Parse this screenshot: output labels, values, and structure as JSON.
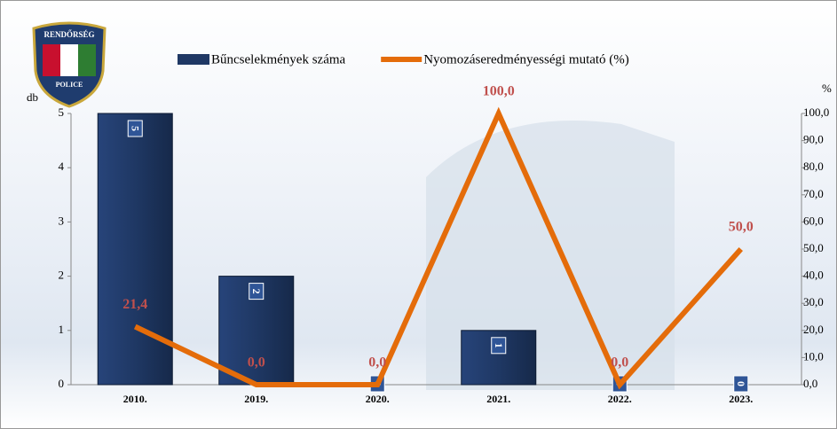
{
  "logo": {
    "top": "RENDŐRSÉG",
    "bottom": "POLICE"
  },
  "chart_data": {
    "type": "combo",
    "categories": [
      "2010.",
      "2019.",
      "2020.",
      "2021.",
      "2022.",
      "2023."
    ],
    "series": [
      {
        "name": "Bűncselekmények száma",
        "type": "bar",
        "color": "#1f3864",
        "values": [
          5,
          2,
          0,
          1,
          0,
          0
        ]
      },
      {
        "name": "Nyomozáseredményességi mutató (%)",
        "type": "line",
        "axis": "y2",
        "color": "#e46c0a",
        "values": [
          21.4,
          0,
          0,
          100,
          0,
          50
        ],
        "value_labels": [
          "21,4",
          "0,0",
          "0,0",
          "100,0",
          "0,0",
          "50,0"
        ],
        "label_color": "#c0504d"
      }
    ],
    "y_label": "db",
    "y2_label": "%",
    "ylim": [
      0,
      5
    ],
    "yticks": [
      0,
      1,
      2,
      3,
      4,
      5
    ],
    "y2lim": [
      0,
      100
    ],
    "y2ticks": [
      {
        "value": 0,
        "label": "0,0"
      },
      {
        "value": 10,
        "label": "10,0"
      },
      {
        "value": 20,
        "label": "20,0"
      },
      {
        "value": 30,
        "label": "30,0"
      },
      {
        "value": 40,
        "label": "40,0"
      },
      {
        "value": 50,
        "label": "50,0"
      },
      {
        "value": 60,
        "label": "60,0"
      },
      {
        "value": 70,
        "label": "70,0"
      },
      {
        "value": 80,
        "label": "80,0"
      },
      {
        "value": 90,
        "label": "90,0"
      },
      {
        "value": 100,
        "label": "100,0"
      }
    ],
    "legend": "top"
  }
}
